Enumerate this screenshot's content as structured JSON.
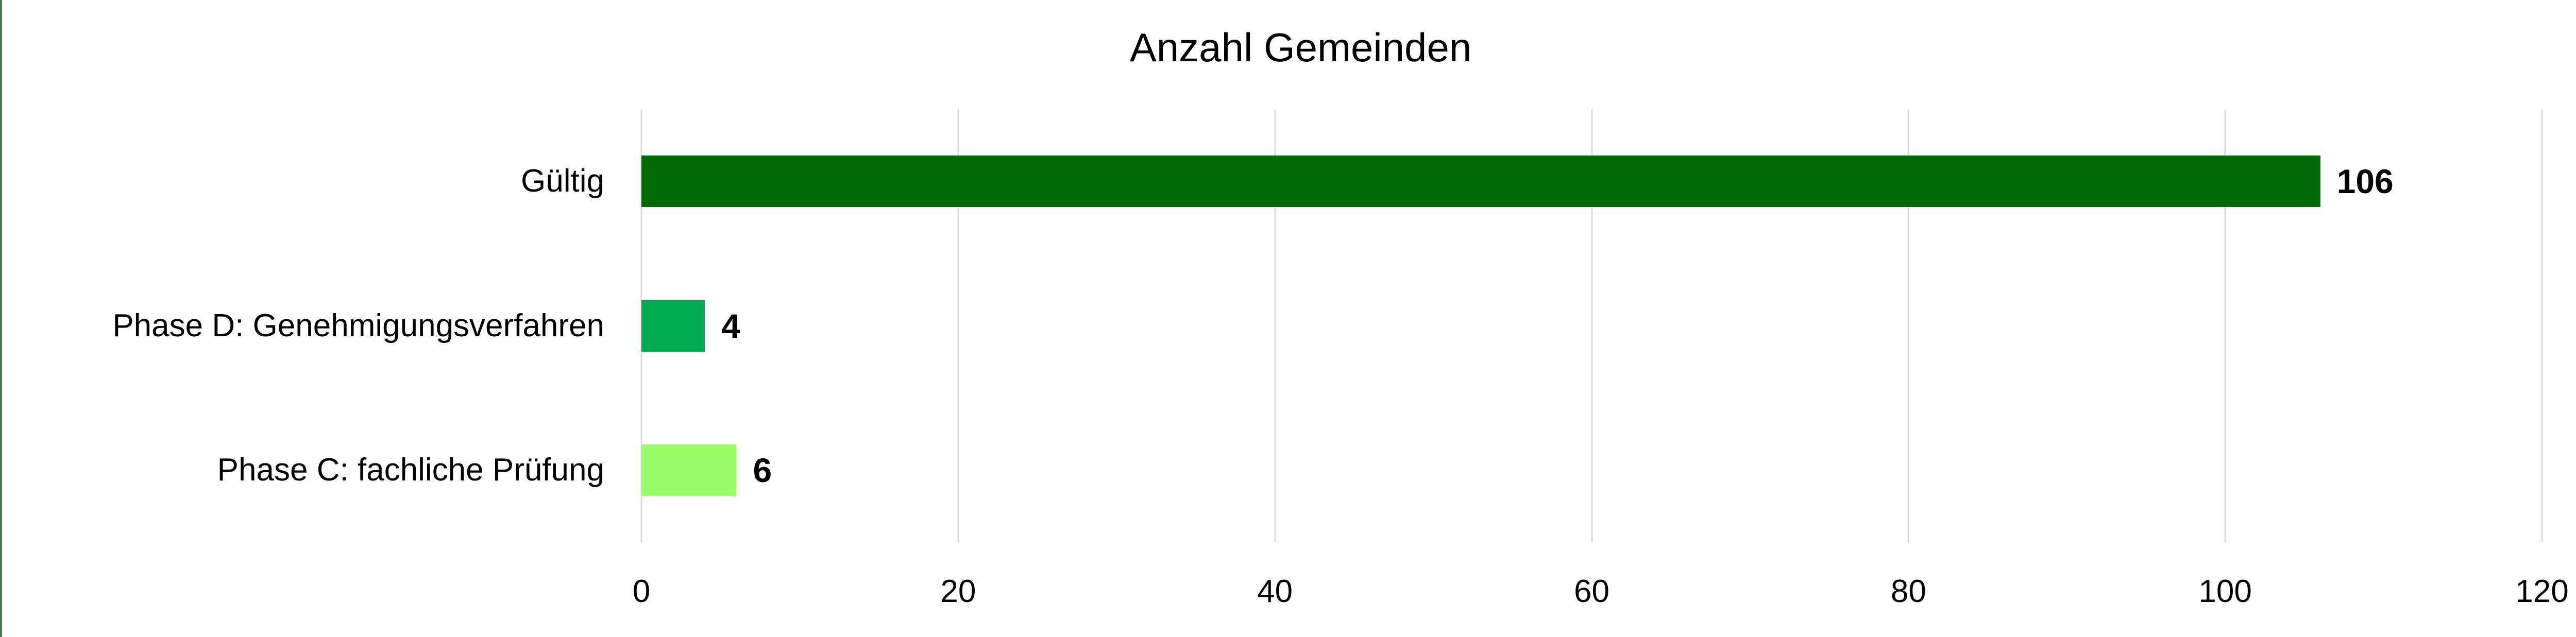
{
  "chart_data": {
    "type": "bar",
    "orientation": "horizontal",
    "title": "Anzahl Gemeinden",
    "categories": [
      "Gültig",
      "Phase D: Genehmigungsverfahren",
      "Phase C: fachliche Prüfung"
    ],
    "values": [
      106,
      4,
      6
    ],
    "data_labels": [
      "106",
      "4",
      "6"
    ],
    "bar_colors": [
      "#046a04",
      "#00ab53",
      "#99fb66"
    ],
    "xlabel": "",
    "ylabel": "",
    "xlim": [
      0,
      120
    ],
    "x_ticks": [
      0,
      20,
      40,
      60,
      80,
      100,
      120
    ],
    "grid": true,
    "legend": false,
    "colors": {
      "gridline": "#d9d9d9",
      "text": "#000000",
      "background": "#ffffff",
      "frame_edge": "#4a7a52"
    }
  }
}
